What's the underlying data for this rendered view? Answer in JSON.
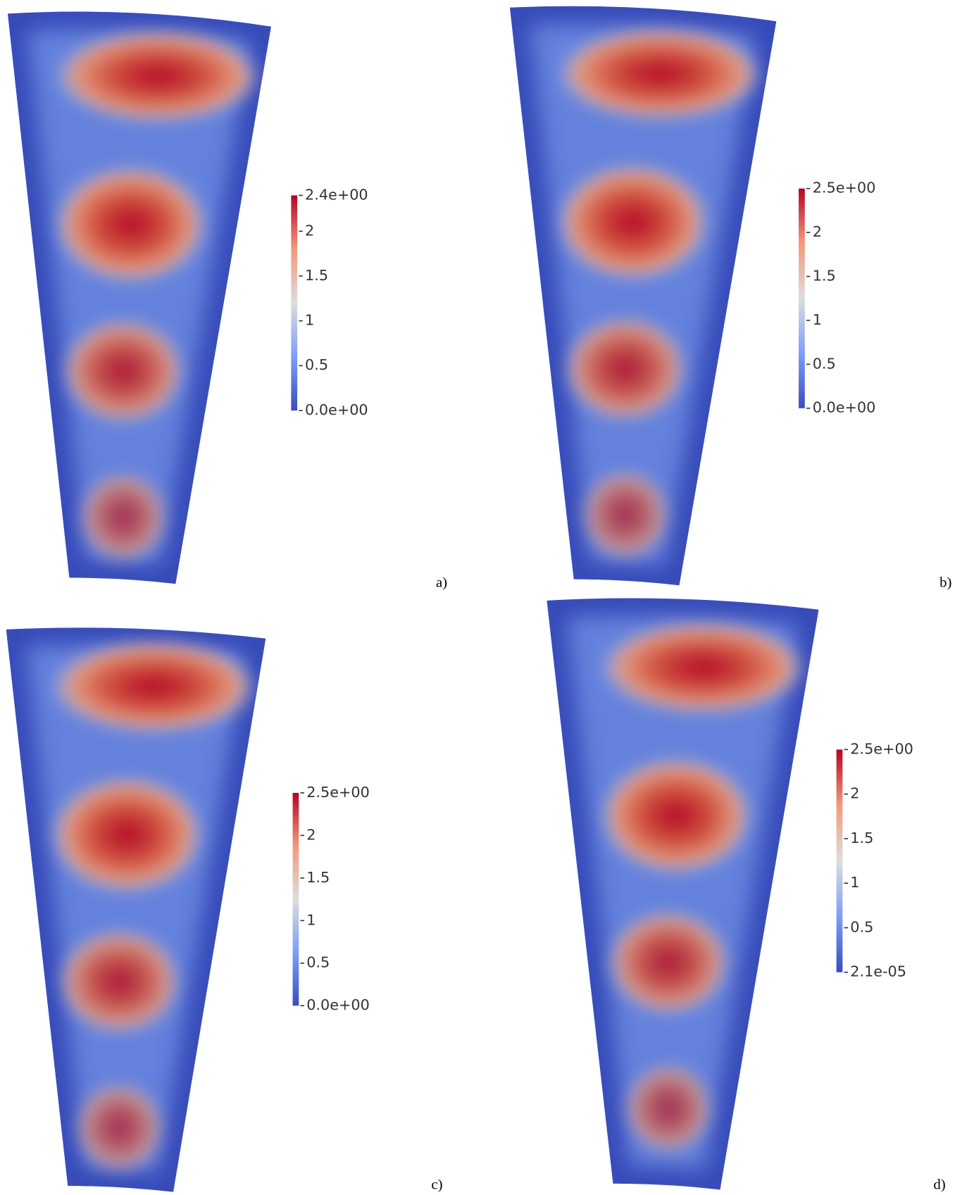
{
  "chart_data": [
    {
      "type": "colormap",
      "panel_label": "a)",
      "colormap": "coolwarm",
      "zlim": [
        0,
        2.4
      ],
      "zticks": [
        {
          "value": 0,
          "label": "0.0e+00"
        },
        0.5,
        1,
        1.5,
        2,
        {
          "value": 2.4,
          "label": "2.4e+00"
        }
      ]
    },
    {
      "type": "colormap",
      "panel_label": "b)",
      "colormap": "coolwarm",
      "zlim": [
        0,
        2.5
      ],
      "zticks": [
        {
          "value": 0,
          "label": "0.0e+00"
        },
        0.5,
        1,
        1.5,
        2,
        {
          "value": 2.5,
          "label": "2.5e+00"
        }
      ]
    },
    {
      "type": "colormap",
      "panel_label": "c)",
      "colormap": "coolwarm",
      "zlim": [
        0,
        2.5
      ],
      "zticks": [
        {
          "value": 0,
          "label": "0.0e+00"
        },
        0.5,
        1,
        1.5,
        2,
        {
          "value": 2.5,
          "label": "2.5e+00"
        }
      ]
    },
    {
      "type": "colormap",
      "panel_label": "d)",
      "colormap": "coolwarm",
      "zlim": [
        2.1e-05,
        2.5
      ],
      "zticks": [
        {
          "value": 2.1e-05,
          "label": "2.1e-05"
        },
        0.5,
        1,
        1.5,
        2,
        {
          "value": 2.5,
          "label": "2.5e+00"
        }
      ]
    }
  ]
}
